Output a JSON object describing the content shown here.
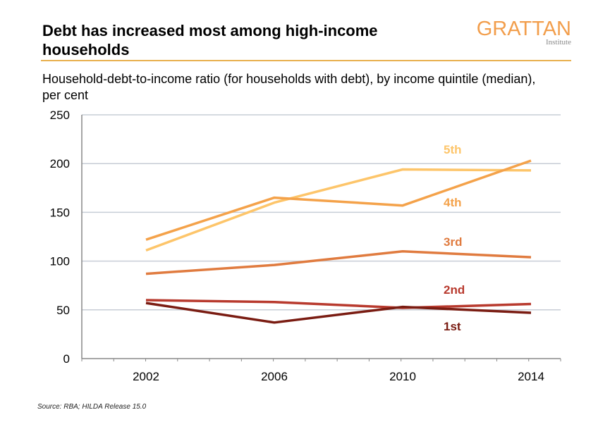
{
  "header": {
    "title": "Debt has increased most among high-income households",
    "subtitle": "Household-debt-to-income ratio (for households with debt), by income quintile (median), per cent",
    "logo_main": "GRATTAN",
    "logo_sub": "Institute",
    "source": "Source: RBA; HILDA Release 15.0"
  },
  "colors": {
    "accent_rule": "#e8b04f",
    "gridline": "#c7cdd6",
    "axis": "#888888"
  },
  "chart_data": {
    "type": "line",
    "title": "Debt has increased most among high-income households",
    "subtitle": "Household-debt-to-income ratio (for households with debt), by income quintile (median), per cent",
    "x": [
      "2002",
      "2006",
      "2010",
      "2014"
    ],
    "ylim": [
      0,
      250
    ],
    "yticks": [
      0,
      50,
      100,
      150,
      200,
      250
    ],
    "grid": true,
    "series": [
      {
        "name": "5th",
        "color": "#fdc56a",
        "values": [
          111,
          160,
          194,
          193
        ]
      },
      {
        "name": "4th",
        "color": "#f4a24a",
        "values": [
          122,
          165,
          157,
          203
        ]
      },
      {
        "name": "3rd",
        "color": "#e07b3f",
        "values": [
          87,
          96,
          110,
          104
        ]
      },
      {
        "name": "2nd",
        "color": "#b83a2e",
        "values": [
          60,
          58,
          52,
          56
        ]
      },
      {
        "name": "1st",
        "color": "#7a1c12",
        "values": [
          57,
          37,
          53,
          47
        ]
      }
    ]
  }
}
